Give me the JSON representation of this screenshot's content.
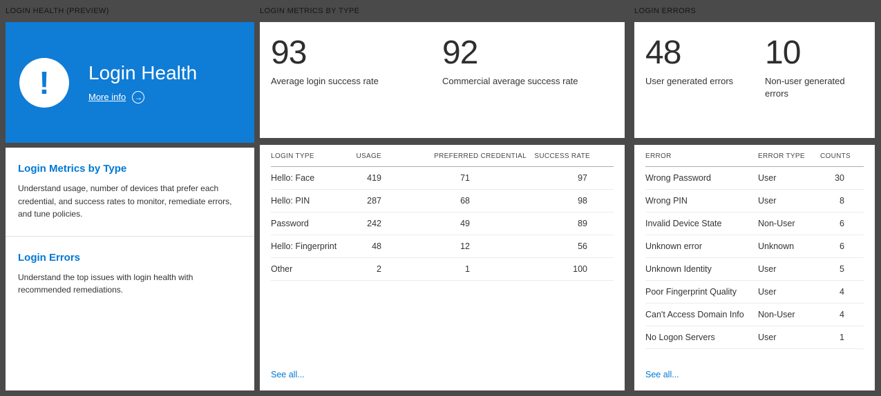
{
  "colors": {
    "background_gray": "#4a4a4a",
    "banner_blue": "#0f7cd6",
    "accent_blue": "#0078d4"
  },
  "icons": {
    "warning_glyph": "!",
    "more_info_arrow": "→"
  },
  "health": {
    "header": "LOGIN HEALTH (PREVIEW)",
    "banner": {
      "title": "Login Health",
      "more_info_label": "More info"
    },
    "sections": [
      {
        "title": "Login Metrics by Type",
        "description": "Understand usage, number of devices that prefer each credential, and success rates to monitor, remediate errors, and tune policies."
      },
      {
        "title": "Login Errors",
        "description": "Understand the top issues with login health with recommended remediations."
      }
    ]
  },
  "metrics": {
    "header": "LOGIN METRICS BY TYPE",
    "stats": [
      {
        "value": "93",
        "label": "Average login success rate"
      },
      {
        "value": "92",
        "label": "Commercial average success rate"
      }
    ],
    "table": {
      "headers": [
        "LOGIN TYPE",
        "USAGE",
        "PREFERRED CREDENTIAL",
        "SUCCESS RATE"
      ],
      "rows": [
        [
          "Hello: Face",
          "419",
          "71",
          "97"
        ],
        [
          "Hello: PIN",
          "287",
          "68",
          "98"
        ],
        [
          "Password",
          "242",
          "49",
          "89"
        ],
        [
          "Hello: Fingerprint",
          "48",
          "12",
          "56"
        ],
        [
          "Other",
          "2",
          "1",
          "100"
        ]
      ]
    },
    "see_all": "See all..."
  },
  "errors": {
    "header": "LOGIN ERRORS",
    "stats": [
      {
        "value": "48",
        "label": "User generated errors"
      },
      {
        "value": "10",
        "label": "Non-user generated errors"
      }
    ],
    "table": {
      "headers": [
        "ERROR",
        "ERROR TYPE",
        "COUNTS"
      ],
      "rows": [
        [
          "Wrong Password",
          "User",
          "30"
        ],
        [
          "Wrong PIN",
          "User",
          "8"
        ],
        [
          "Invalid Device State",
          "Non-User",
          "6"
        ],
        [
          "Unknown error",
          "Unknown",
          "6"
        ],
        [
          "Unknown Identity",
          "User",
          "5"
        ],
        [
          "Poor Fingerprint Quality",
          "User",
          "4"
        ],
        [
          "Can't Access Domain Info",
          "Non-User",
          "4"
        ],
        [
          "No Logon Servers",
          "User",
          "1"
        ]
      ]
    },
    "see_all": "See all..."
  }
}
